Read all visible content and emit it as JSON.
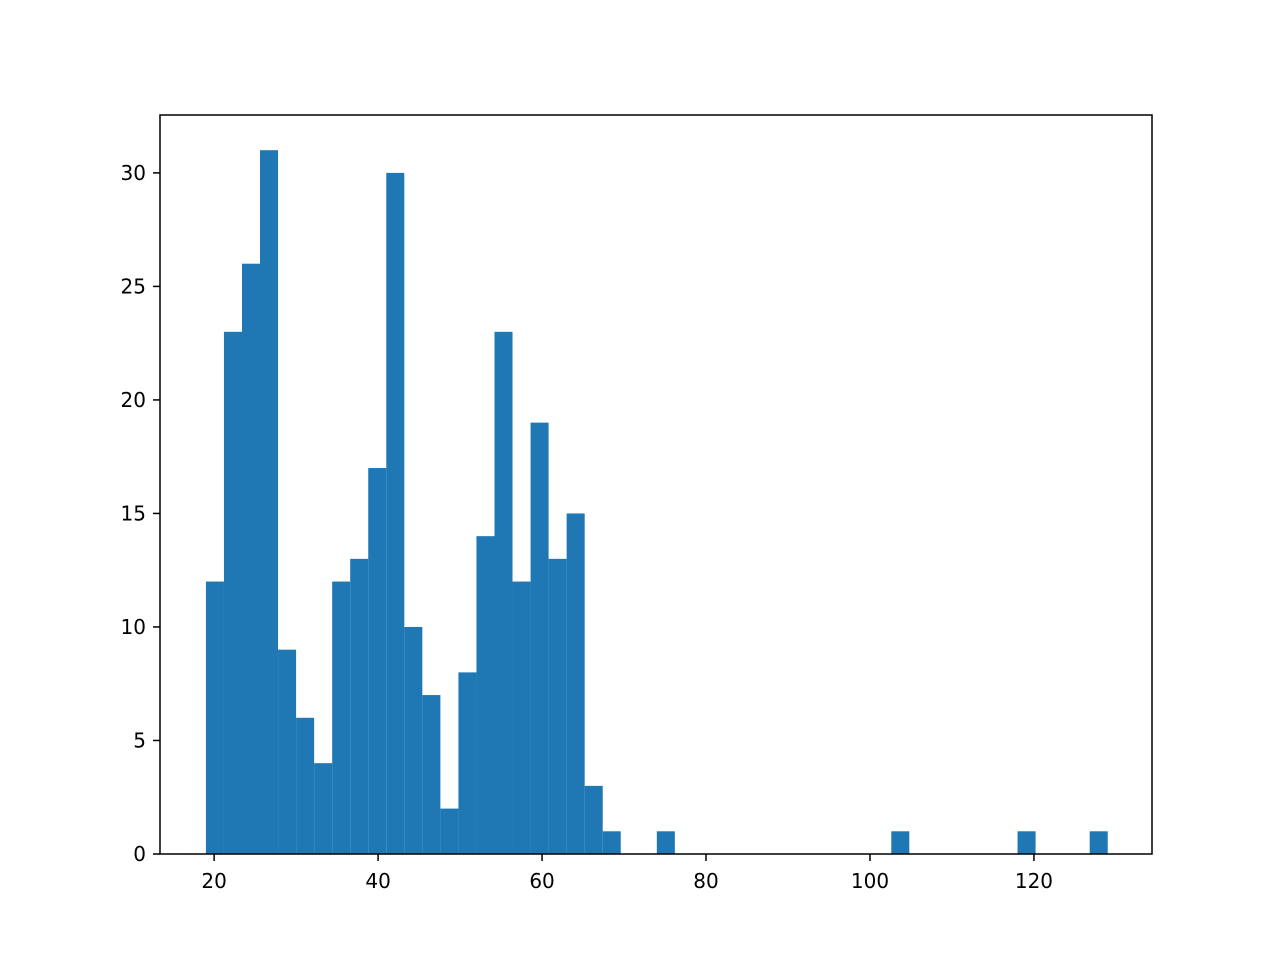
{
  "chart_data": {
    "type": "histogram",
    "bins": [
      19,
      21.2,
      23.4,
      25.6,
      27.8,
      30,
      32.2,
      34.4,
      36.6,
      38.8,
      41,
      43.2,
      45.4,
      47.6,
      49.8,
      52,
      54.2,
      56.4,
      58.6,
      60.8,
      63,
      65.2,
      67.4,
      69.6,
      71.8,
      74,
      76.2,
      78.4,
      80.6,
      82.8,
      85,
      87.2,
      89.4,
      91.6,
      93.8,
      96,
      98.2,
      100.4,
      102.6,
      104.8,
      107,
      109.2,
      111.4,
      113.6,
      115.8,
      118,
      120.2,
      122.4,
      124.6,
      126.8,
      129
    ],
    "counts": [
      12,
      23,
      26,
      31,
      9,
      6,
      4,
      12,
      13,
      17,
      30,
      10,
      7,
      2,
      8,
      14,
      23,
      12,
      19,
      13,
      15,
      3,
      1,
      0,
      0,
      1,
      0,
      0,
      0,
      0,
      0,
      0,
      0,
      0,
      0,
      0,
      0,
      0,
      1,
      0,
      0,
      0,
      0,
      0,
      0,
      1,
      0,
      0,
      0,
      1
    ],
    "color": "#1f77b4",
    "xlim": [
      13.4,
      134.4
    ],
    "xticks": [
      20,
      40,
      60,
      80,
      100,
      120
    ],
    "ylim": [
      0,
      32.55
    ],
    "yticks": [
      0,
      5,
      10,
      15,
      20,
      25,
      30
    ]
  }
}
